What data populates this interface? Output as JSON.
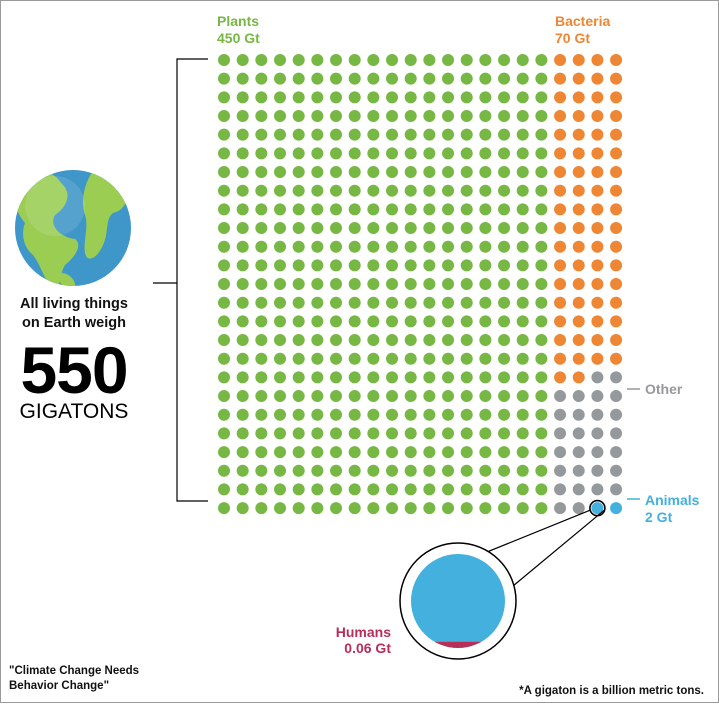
{
  "headline": {
    "line1": "All living things",
    "line2": "on Earth weigh",
    "number": "550",
    "unit": "GIGATONS"
  },
  "source": {
    "line1": "\"Climate Change Needs",
    "line2": "Behavior Change\""
  },
  "footnote": "*A gigaton is a billion metric tons.",
  "icons": {
    "globe": "earth-globe-icon"
  },
  "chart_data": {
    "type": "dot-matrix",
    "total": 550,
    "unit": "Gt",
    "grid": {
      "columns": 22,
      "rows": 25
    },
    "categories": [
      {
        "name": "Plants",
        "label_value": "450 Gt",
        "value": 450,
        "dots": 450,
        "color": "#76B843"
      },
      {
        "name": "Bacteria",
        "label_value": "70 Gt",
        "value": 70,
        "dots": 70,
        "color": "#EE8633"
      },
      {
        "name": "Other",
        "label_value": "",
        "value": 28,
        "dots": 28,
        "color": "#96999C"
      },
      {
        "name": "Animals",
        "label_value": "2 Gt",
        "value": 2,
        "dots": 2,
        "color": "#43B0DE"
      }
    ],
    "zoom": {
      "name": "Humans",
      "label_value": "0.06 Gt",
      "value": 0.06,
      "fraction_of_dot": 0.03,
      "color": "#B62F58",
      "dot_color": "#43B0DE"
    }
  }
}
